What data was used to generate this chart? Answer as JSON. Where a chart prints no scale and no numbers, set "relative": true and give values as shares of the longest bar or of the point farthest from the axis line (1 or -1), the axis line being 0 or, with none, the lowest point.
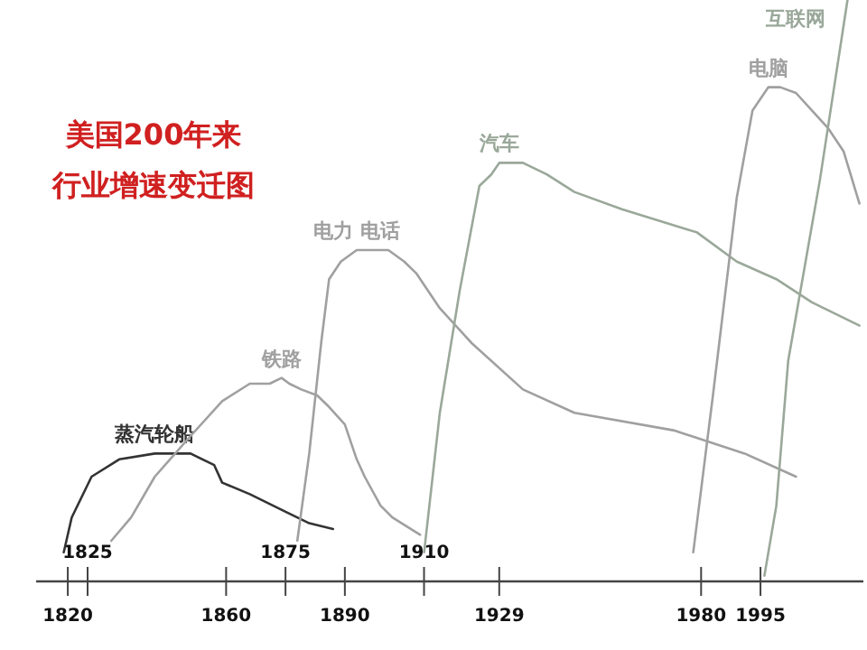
{
  "chart_data": {
    "type": "line",
    "title": "美国200年来",
    "subtitle": "行业增速变迁图",
    "relative": true,
    "xlim": [
      1812,
      2021
    ],
    "xticks": [
      1820,
      1860,
      1890,
      1929,
      1980,
      1995
    ],
    "x2lim": [
      1812,
      2021
    ],
    "x2ticks": [
      1825,
      1875,
      1910
    ],
    "grid": false,
    "legend": false,
    "marker": "none",
    "line_style": "solid",
    "series": [
      {
        "name": "蒸汽轮船",
        "color": "#333333",
        "x": [
          1819,
          1821,
          1826,
          1833,
          1842,
          1851,
          1857,
          1859,
          1866,
          1875,
          1881,
          1887
        ],
        "values": [
          0.05,
          0.11,
          0.18,
          0.21,
          0.22,
          0.22,
          0.2,
          0.17,
          0.15,
          0.12,
          0.1,
          0.09
        ]
      },
      {
        "name": "铁路",
        "color": "#a0a0a0",
        "x": [
          1831,
          1836,
          1842,
          1851,
          1859,
          1866,
          1871,
          1874,
          1876,
          1879,
          1883,
          1886,
          1890,
          1893,
          1895,
          1899,
          1902,
          1909
        ],
        "values": [
          0.07,
          0.11,
          0.18,
          0.25,
          0.31,
          0.34,
          0.34,
          0.35,
          0.34,
          0.33,
          0.32,
          0.3,
          0.27,
          0.21,
          0.18,
          0.13,
          0.11,
          0.08
        ]
      },
      {
        "name": "电力 电话",
        "color": "#a0a0a0",
        "x": [
          1878,
          1881,
          1884,
          1886,
          1889,
          1893,
          1901,
          1905,
          1908,
          1914,
          1922,
          1935,
          1948,
          1973,
          1991,
          2004
        ],
        "values": [
          0.07,
          0.22,
          0.41,
          0.52,
          0.55,
          0.57,
          0.57,
          0.55,
          0.53,
          0.47,
          0.41,
          0.33,
          0.29,
          0.26,
          0.22,
          0.18
        ]
      },
      {
        "name": "汽车",
        "color": "#9aa89a",
        "x": [
          1910,
          1914,
          1919,
          1924,
          1927,
          1929,
          1935,
          1941,
          1948,
          1960,
          1979,
          1989,
          1999,
          2008,
          2020
        ],
        "values": [
          0.05,
          0.29,
          0.5,
          0.68,
          0.7,
          0.72,
          0.72,
          0.7,
          0.67,
          0.64,
          0.6,
          0.55,
          0.52,
          0.48,
          0.44
        ]
      },
      {
        "name": "电脑",
        "color": "#a0a0a0",
        "x": [
          1978,
          1983,
          1989,
          1993,
          1997,
          2000,
          2004,
          2008,
          2012,
          2016,
          2020
        ],
        "values": [
          0.05,
          0.32,
          0.66,
          0.81,
          0.85,
          0.85,
          0.84,
          0.81,
          0.78,
          0.74,
          0.65
        ]
      },
      {
        "name": "互联网",
        "color": "#9aa89a",
        "x": [
          1996,
          1999,
          2002,
          2010,
          2017
        ],
        "values": [
          0.01,
          0.13,
          0.38,
          0.69,
          1.0
        ]
      }
    ]
  }
}
